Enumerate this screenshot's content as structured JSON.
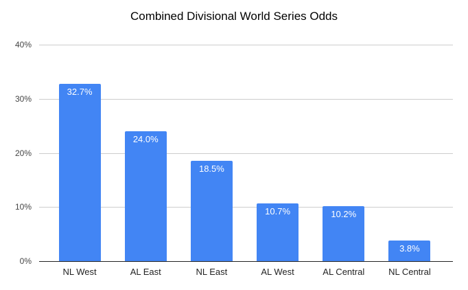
{
  "chart_data": {
    "type": "bar",
    "title": "Combined Divisional World Series Odds",
    "categories": [
      "NL West",
      "AL East",
      "NL East",
      "AL West",
      "AL Central",
      "NL Central"
    ],
    "values": [
      32.7,
      24.0,
      18.5,
      10.7,
      10.2,
      3.8
    ],
    "value_labels": [
      "32.7%",
      "24.0%",
      "18.5%",
      "10.7%",
      "10.2%",
      "3.8%"
    ],
    "xlabel": "",
    "ylabel": "",
    "ylim": [
      0,
      40
    ],
    "yticks": [
      0,
      10,
      20,
      30,
      40
    ],
    "ytick_labels": [
      "0%",
      "10%",
      "20%",
      "30%",
      "40%"
    ],
    "grid": true,
    "legend": "none"
  },
  "colors": {
    "background": "#ffffff",
    "bar": "#4285f4",
    "gridline": "#cccccc",
    "axis_line": "#222222",
    "title_text": "#000000",
    "ytick_text": "#444444",
    "xtick_text": "#222222",
    "bar_label_text": "#ffffff"
  }
}
